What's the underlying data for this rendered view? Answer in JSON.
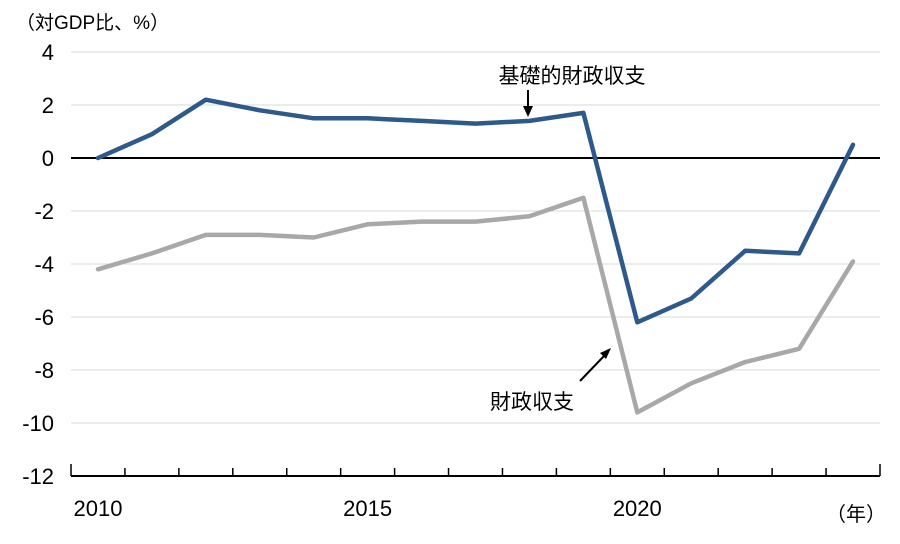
{
  "title": "（対GDP比、%）",
  "x_axis_unit": "（年）",
  "chart_data": {
    "type": "line",
    "x": [
      2010,
      2011,
      2012,
      2013,
      2014,
      2015,
      2016,
      2017,
      2018,
      2019,
      2020,
      2021,
      2022,
      2023,
      2024
    ],
    "x_tick_labels": [
      {
        "year": 2010,
        "label": "2010"
      },
      {
        "year": 2015,
        "label": "2015"
      },
      {
        "year": 2020,
        "label": "2020"
      }
    ],
    "xlabel": "（年）",
    "ylabel": "（対GDP比、%）",
    "ylim": [
      -12,
      4
    ],
    "yticks": [
      4,
      2,
      0,
      -2,
      -4,
      -6,
      -8,
      -10,
      -12
    ],
    "grid": "horizontal",
    "gridline_color": "#d9d9d9",
    "zero_line_color": "#000000",
    "axis_color": "#000000",
    "legend_position": "annotations-on-chart",
    "series": [
      {
        "id": "primary-balance",
        "name": "基礎的財政収支",
        "color": "#2e5a8b",
        "values": [
          0.0,
          0.9,
          2.2,
          1.8,
          1.5,
          1.5,
          1.4,
          1.3,
          1.4,
          1.7,
          -6.2,
          -5.3,
          -3.5,
          -3.6,
          0.5
        ]
      },
      {
        "id": "fiscal-balance",
        "name": "財政収支",
        "color": "#a8a8a8",
        "values": [
          -4.2,
          -3.6,
          -2.9,
          -2.9,
          -3.0,
          -2.5,
          -2.4,
          -2.4,
          -2.2,
          -1.5,
          -9.6,
          -8.5,
          -7.7,
          -7.2,
          -3.9
        ]
      }
    ],
    "annotations": [
      {
        "id": "primary-balance-label",
        "text": "基礎的財政収支",
        "arrow": "down",
        "points_to": "primary-balance line at 2018"
      },
      {
        "id": "fiscal-balance-label",
        "text": "財政収支",
        "arrow": "up-right",
        "points_to": "fiscal-balance line between 2019 and 2020"
      }
    ]
  }
}
